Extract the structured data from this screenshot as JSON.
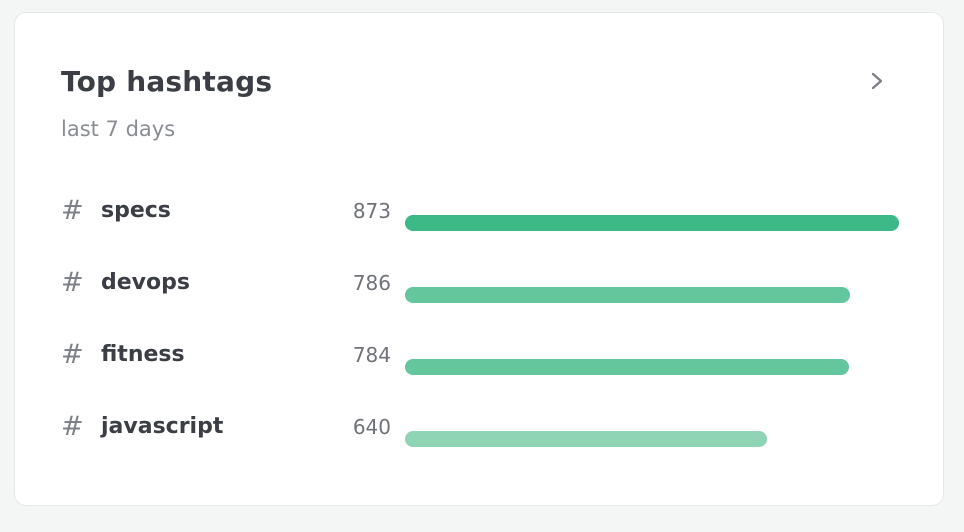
{
  "card": {
    "title": "Top hashtags",
    "subtitle": "last 7 days",
    "chevron_icon": "chevron-right-icon"
  },
  "hashtags": [
    {
      "symbol": "#",
      "name": "specs",
      "count": "873",
      "value": 873,
      "color": "#3db887"
    },
    {
      "symbol": "#",
      "name": "devops",
      "count": "786",
      "value": 786,
      "color": "#63c69d"
    },
    {
      "symbol": "#",
      "name": "fitness",
      "count": "784",
      "value": 784,
      "color": "#63c69d"
    },
    {
      "symbol": "#",
      "name": "javascript",
      "count": "640",
      "value": 640,
      "color": "#8ed4b5"
    }
  ],
  "max_value": 873
}
